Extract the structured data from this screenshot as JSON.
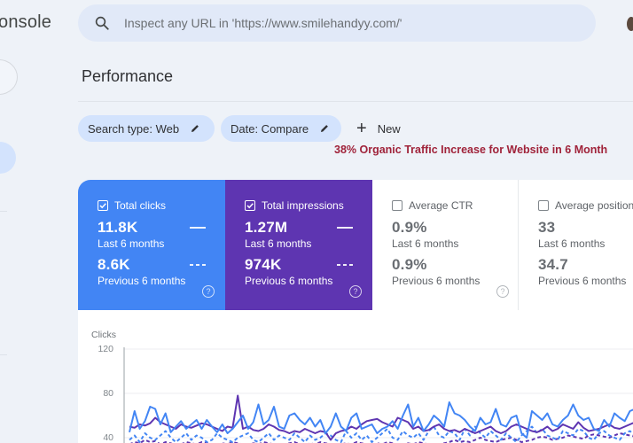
{
  "app": {
    "brand_fragment": "onsole"
  },
  "search": {
    "placeholder": "Inspect any URL in 'https://www.smilehandyy.com/'",
    "value": ""
  },
  "page": {
    "title": "Performance"
  },
  "filters": {
    "chips": [
      {
        "label": "Search type: Web",
        "icon": "pencil-icon"
      },
      {
        "label": "Date: Compare",
        "icon": "pencil-icon"
      }
    ],
    "new_label": "New",
    "new_icon": "plus-icon"
  },
  "annotation": {
    "text": "38% Organic Traffic Increase for Website in 6 Month",
    "color": "#a0233a"
  },
  "metrics": [
    {
      "label": "Total clicks",
      "checked": true,
      "current": "11.8K",
      "current_period": "Last 6 months",
      "previous": "8.6K",
      "previous_period": "Previous 6 months",
      "color": "#4285f4"
    },
    {
      "label": "Total impressions",
      "checked": true,
      "current": "1.27M",
      "current_period": "Last 6 months",
      "previous": "974K",
      "previous_period": "Previous 6 months",
      "color": "#5e35b1"
    },
    {
      "label": "Average CTR",
      "checked": false,
      "current": "0.9%",
      "current_period": "Last 6 months",
      "previous": "0.9%",
      "previous_period": "Previous 6 months",
      "color": "#ffffff"
    },
    {
      "label": "Average position",
      "checked": false,
      "current": "33",
      "current_period": "Last 6 months",
      "previous": "34.7",
      "previous_period": "Previous 6 months",
      "color": "#ffffff"
    }
  ],
  "chart": {
    "ylabel": "Clicks",
    "yticks": [
      "120",
      "80",
      "40"
    ]
  },
  "chart_data": {
    "type": "line",
    "title": "",
    "xlabel": "",
    "ylabel": "Clicks",
    "ylim": [
      0,
      120
    ],
    "yticks": [
      120,
      80,
      40
    ],
    "grid": true,
    "series": [
      {
        "name": "Total clicks - Last 6 months",
        "style": "solid",
        "color": "#4285f4",
        "values": [
          45,
          64,
          48,
          55,
          68,
          66,
          52,
          62,
          45,
          50,
          55,
          48,
          52,
          56,
          48,
          56,
          50,
          45,
          52,
          44,
          48,
          54,
          60,
          48,
          54,
          70,
          52,
          56,
          68,
          50,
          48,
          60,
          62,
          56,
          52,
          58,
          50,
          56,
          44,
          50,
          62,
          50,
          46,
          58,
          62,
          48,
          50,
          52,
          44,
          48,
          50,
          55,
          48,
          60,
          70,
          50,
          58,
          46,
          52,
          60,
          56,
          50,
          72,
          62,
          60,
          56,
          50,
          46,
          58,
          52,
          54,
          66,
          52,
          50,
          58,
          60,
          44,
          40,
          64,
          60,
          56,
          62,
          52,
          50,
          56,
          60,
          70,
          60,
          56,
          58,
          48,
          46,
          56,
          50,
          62,
          58,
          55,
          64,
          66,
          70,
          60
        ]
      },
      {
        "name": "Total clicks - Previous 6 months",
        "style": "dashed",
        "color": "#4285f4",
        "values": [
          38,
          42,
          36,
          44,
          40,
          38,
          42,
          46,
          40,
          36,
          40,
          44,
          38,
          42,
          40,
          36,
          38,
          44,
          40,
          38,
          36,
          40,
          42,
          44,
          38,
          36,
          40,
          44,
          38,
          42,
          40,
          38,
          44,
          40,
          36,
          42,
          38,
          40,
          44,
          42,
          38,
          36,
          46,
          40,
          44,
          38,
          42,
          36,
          40,
          44,
          48,
          40,
          38,
          46,
          42,
          40,
          44,
          38,
          46,
          50,
          42,
          40,
          46,
          44,
          38,
          48,
          42,
          50,
          44,
          40,
          46,
          42,
          38,
          44,
          40,
          36,
          42,
          46,
          50,
          44,
          48,
          42,
          40,
          38,
          46,
          44,
          42,
          48,
          46,
          40,
          38,
          44,
          46,
          42,
          40,
          38,
          44,
          46,
          42,
          40,
          44
        ]
      },
      {
        "name": "Total impressions - Last 6 months",
        "style": "solid",
        "color": "#5e35b1",
        "values": [
          50,
          49,
          52,
          51,
          53,
          58,
          54,
          52,
          50,
          48,
          52,
          50,
          49,
          51,
          53,
          52,
          50,
          48,
          46,
          50,
          49,
          78,
          48,
          50,
          47,
          46,
          48,
          52,
          50,
          47,
          46,
          44,
          46,
          45,
          48,
          46,
          44,
          46,
          45,
          38,
          44,
          46,
          47,
          50,
          48,
          52,
          55,
          56,
          57,
          54,
          52,
          50,
          58,
          56,
          54,
          48,
          50,
          46,
          47,
          50,
          52,
          48,
          46,
          47,
          45,
          48,
          46,
          44,
          46,
          48,
          50,
          46,
          44,
          46,
          50,
          52,
          50,
          48,
          46,
          45,
          47,
          50,
          46,
          48,
          52,
          50,
          48,
          54,
          49,
          46,
          47,
          48,
          50,
          52,
          49,
          48,
          50,
          52,
          54,
          52,
          48
        ]
      },
      {
        "name": "Total impressions - Previous 6 months",
        "style": "dashed",
        "color": "#5e35b1",
        "values": [
          34,
          36,
          35,
          38,
          36,
          37,
          34,
          36,
          35,
          33,
          34,
          36,
          35,
          34,
          36,
          35,
          34,
          33,
          35,
          34,
          36,
          35,
          34,
          33,
          35,
          34,
          36,
          35,
          34,
          33,
          34,
          35,
          36,
          34,
          33,
          35,
          34,
          36,
          35,
          34,
          33,
          34,
          35,
          34,
          36,
          35,
          34,
          33,
          35,
          34,
          36,
          35,
          34,
          33,
          35,
          34,
          36,
          35,
          34,
          33,
          34,
          35,
          36,
          38,
          36,
          37,
          36,
          38,
          40,
          38,
          37,
          36,
          38,
          39,
          40,
          38,
          36,
          37,
          38,
          40,
          41,
          40,
          38,
          39,
          40,
          42,
          41,
          40,
          39,
          42,
          43,
          42,
          41,
          40,
          42,
          44,
          43,
          42,
          41,
          42,
          44
        ]
      }
    ]
  }
}
